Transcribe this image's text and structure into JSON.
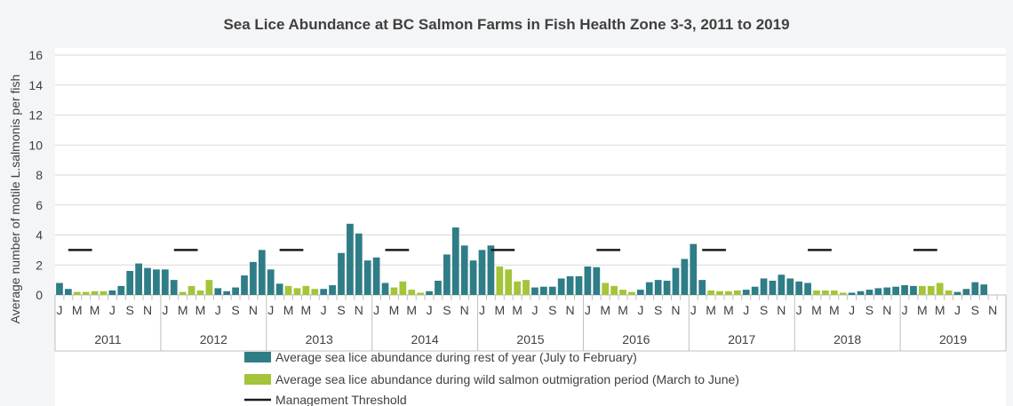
{
  "colors": {
    "rest_of_year": "#2f7d86",
    "outmigration": "#a4c439",
    "threshold": "#1a1a1a",
    "grid": "#d9d9d9",
    "axis": "#bfbfbf",
    "background": "#f4f5f7",
    "plot_background": "#ffffff"
  },
  "chart_data": {
    "type": "bar",
    "title": "Sea Lice Abundance at BC Salmon Farms in Fish Health Zone 3-3, 2011 to 2019",
    "xlabel": "",
    "ylabel": "Average number of motile L.salmonis per fish",
    "ylim": [
      0,
      16
    ],
    "yticks": [
      "0",
      "2",
      "4",
      "6",
      "8",
      "10",
      "12",
      "14",
      "16"
    ],
    "grid": true,
    "legend_position": "bottom",
    "years": [
      "2011",
      "2012",
      "2013",
      "2014",
      "2015",
      "2016",
      "2017",
      "2018",
      "2019"
    ],
    "month_tick_labels": [
      "J",
      "M",
      "M",
      "J",
      "S",
      "N"
    ],
    "series": [
      {
        "name": "Average sea lice abundance during rest of year (July to February)",
        "color_key": "rest_of_year"
      },
      {
        "name": "Average sea lice abundance during wild salmon outmigration period (March to June)",
        "color_key": "outmigration"
      },
      {
        "name": "Management Threshold",
        "color_key": "threshold"
      }
    ],
    "threshold_value": 3,
    "values": [
      [
        0.8,
        0.4,
        0.2,
        0.2,
        0.25,
        0.25,
        0.3,
        0.6,
        1.6,
        2.1,
        1.8,
        1.7
      ],
      [
        1.7,
        1.0,
        0.2,
        0.6,
        0.3,
        1.0,
        0.45,
        0.25,
        0.5,
        1.3,
        2.2,
        3.0
      ],
      [
        1.7,
        0.75,
        0.6,
        0.45,
        0.6,
        0.4,
        0.4,
        0.65,
        2.8,
        4.75,
        4.1,
        2.3
      ],
      [
        2.5,
        0.8,
        0.5,
        0.9,
        0.35,
        0.15,
        0.25,
        0.95,
        2.7,
        4.5,
        3.3,
        2.3
      ],
      [
        3.0,
        3.3,
        1.9,
        1.7,
        0.9,
        1.0,
        0.5,
        0.55,
        0.55,
        1.1,
        1.25,
        1.25
      ],
      [
        1.9,
        1.85,
        0.8,
        0.6,
        0.35,
        0.2,
        0.35,
        0.85,
        1.0,
        0.95,
        1.8,
        2.4
      ],
      [
        3.4,
        1.0,
        0.3,
        0.25,
        0.25,
        0.3,
        0.35,
        0.55,
        1.1,
        0.95,
        1.35,
        1.1
      ],
      [
        0.9,
        0.8,
        0.3,
        0.3,
        0.3,
        0.15,
        0.15,
        0.25,
        0.35,
        0.45,
        0.5,
        0.55
      ],
      [
        0.65,
        0.6,
        0.6,
        0.6,
        0.8,
        0.3,
        0.2,
        0.4,
        0.85,
        0.7
      ]
    ]
  }
}
